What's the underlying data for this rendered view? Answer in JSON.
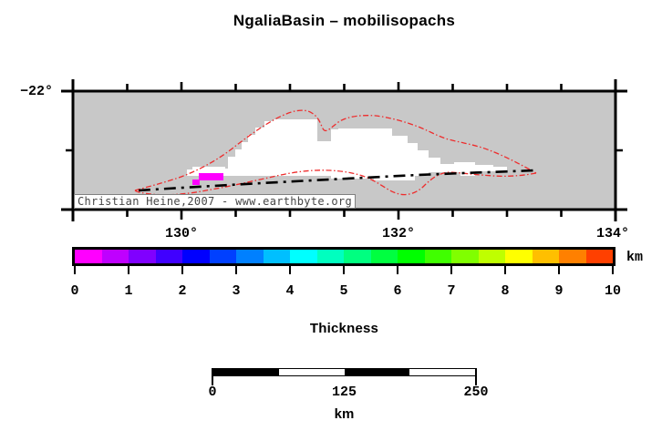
{
  "title": "NgaliaBasin – mobilisopachs",
  "map": {
    "lat_tick_label": "−22°",
    "lon_tick_labels": [
      "130°",
      "132°",
      "134°"
    ],
    "copyright": "Christian Heine,2007 - www.earthbyte.org"
  },
  "colorbar": {
    "title": "Thickness",
    "unit": "km",
    "range": [
      0,
      10
    ],
    "tick_labels": [
      "0",
      "1",
      "2",
      "3",
      "4",
      "5",
      "6",
      "7",
      "8",
      "9",
      "10"
    ],
    "segment_colors": [
      "#ff00ff",
      "#bf00ff",
      "#8000ff",
      "#4000ff",
      "#0000ff",
      "#0040ff",
      "#0080ff",
      "#00bfff",
      "#00ffff",
      "#00ffbf",
      "#00ff80",
      "#00ff40",
      "#00ff00",
      "#40ff00",
      "#80ff00",
      "#bfff00",
      "#ffff00",
      "#ffbf00",
      "#ff8000",
      "#ff4000"
    ]
  },
  "scalebar": {
    "tick_labels": [
      "0",
      "125",
      "250"
    ],
    "unit": "km"
  },
  "colors": {
    "map-gray": "#c8c8c8",
    "basin-white": "#ffffff",
    "isopach-magenta": "#ff00ff",
    "contour-red": "#ee2c2c",
    "frame-black": "#000000"
  }
}
